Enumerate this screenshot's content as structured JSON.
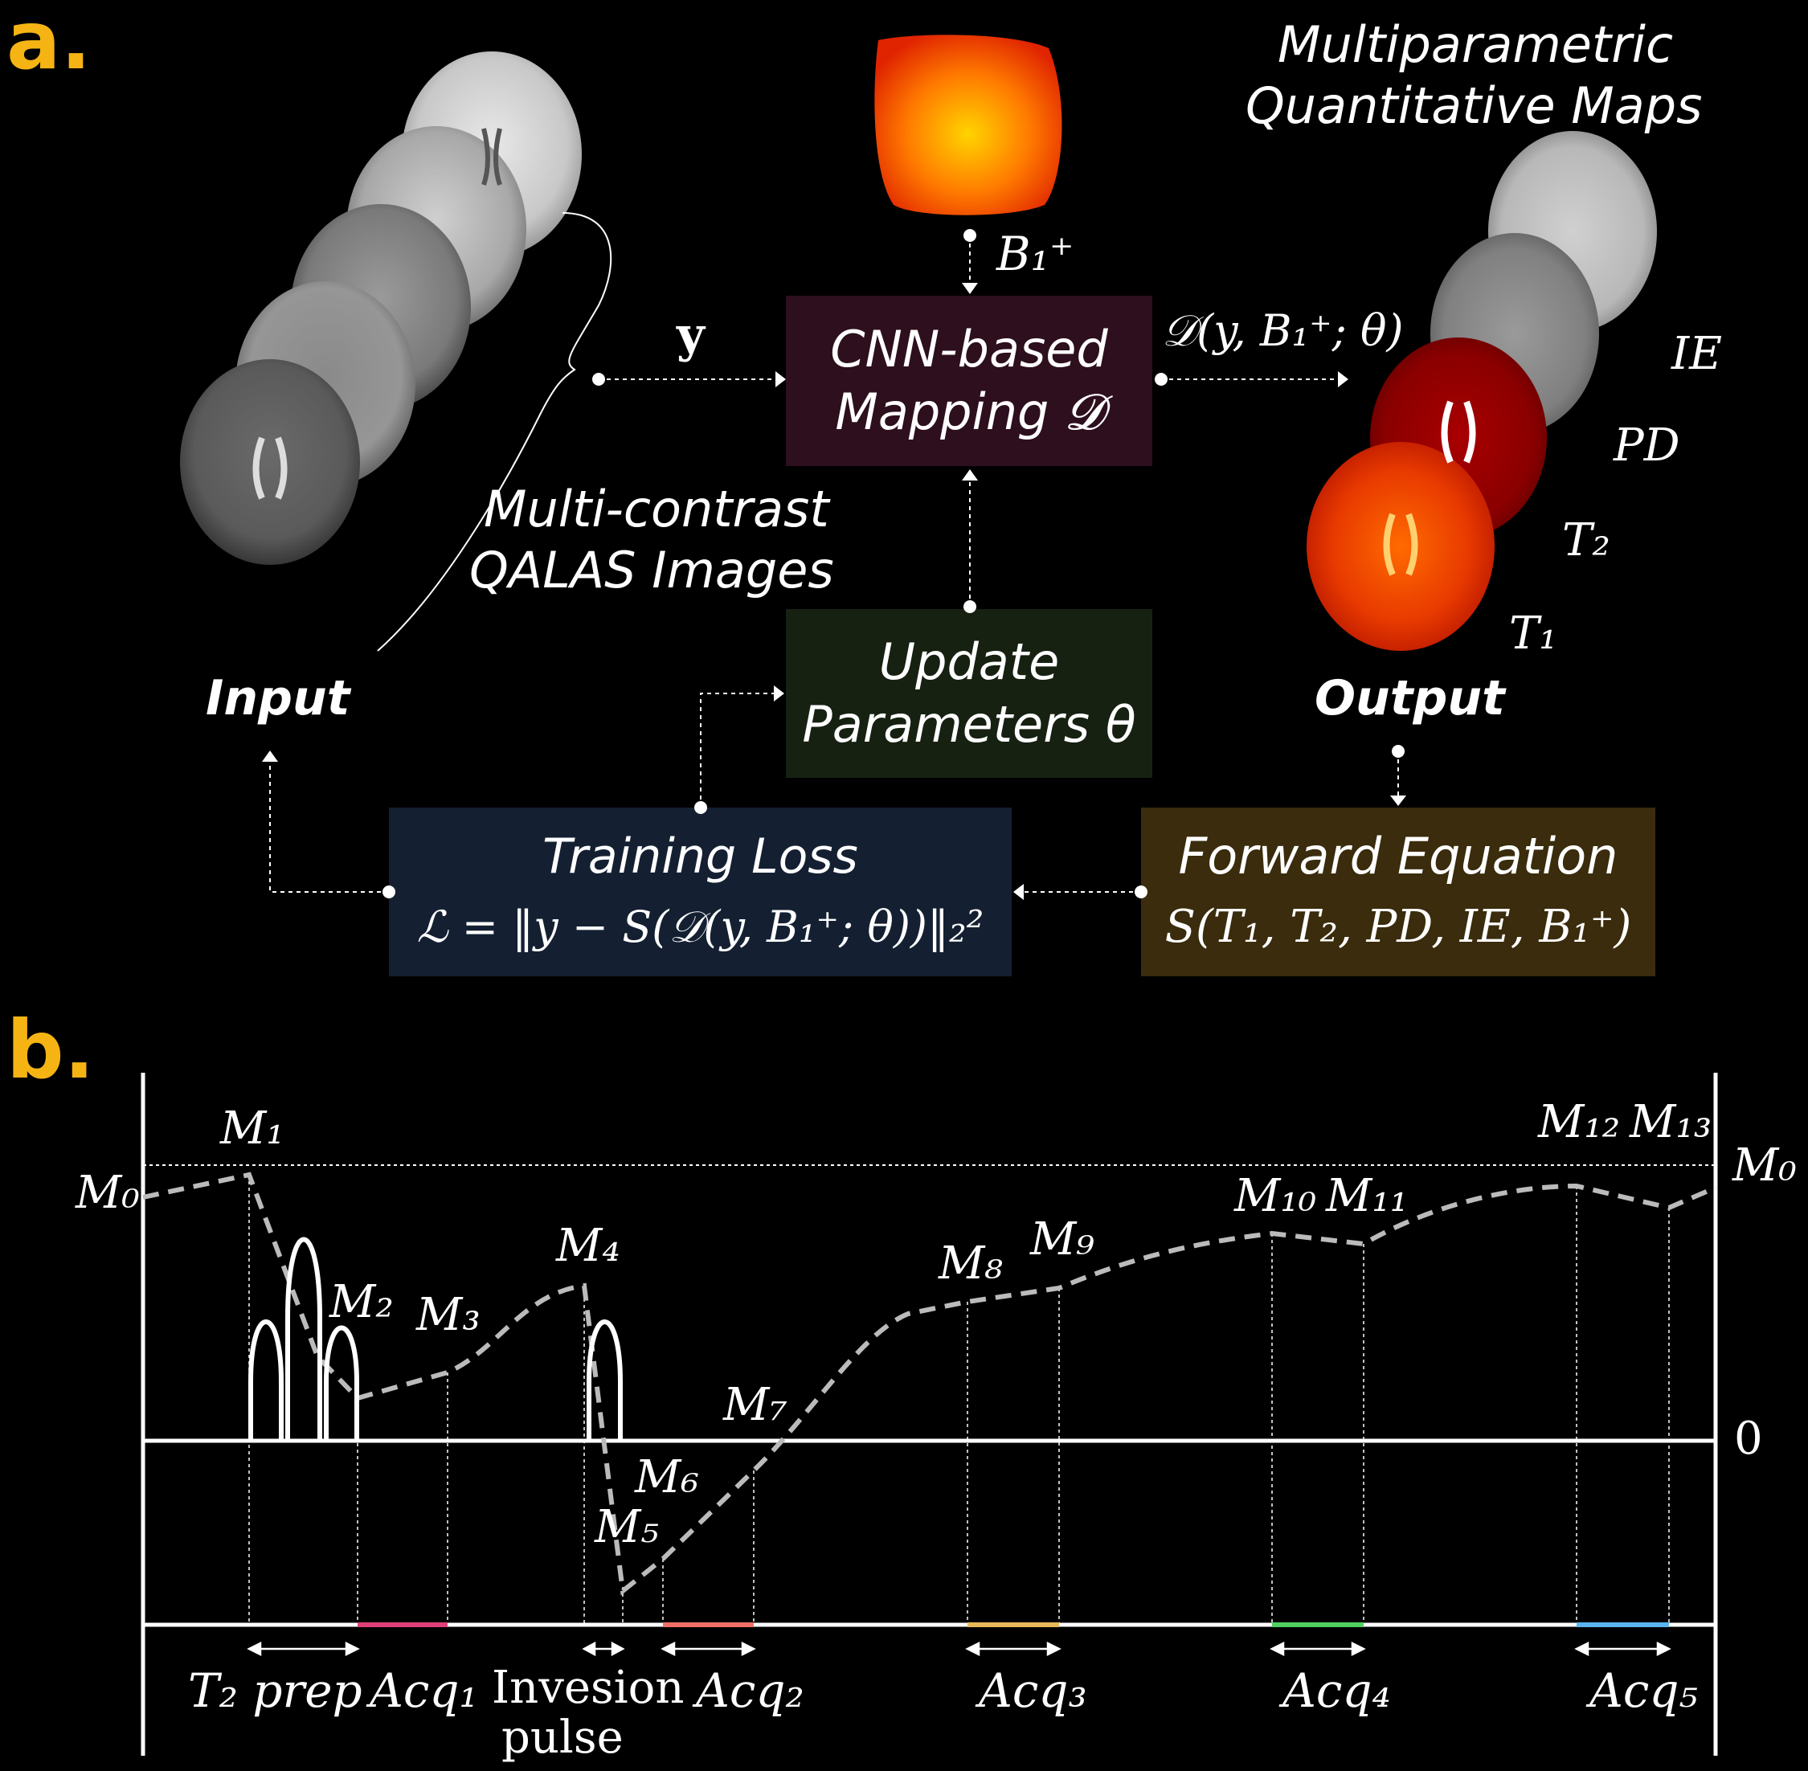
{
  "panel_a": {
    "label": "a.",
    "input_label": "Input",
    "output_label": "Output",
    "multicontrast": [
      "Multi-contrast",
      "QALAS Images"
    ],
    "maps_title": [
      "Multiparametric",
      "Quantitative Maps"
    ],
    "y_symbol": "y",
    "b1_symbol": "B₁⁺",
    "cnn_box": {
      "line1": "CNN-based",
      "line2": "Mapping 𝓓",
      "color": "#2e0f1e"
    },
    "update_box": {
      "line1": "Update",
      "line2": "Parameters θ",
      "color": "#162112"
    },
    "loss_box": {
      "line1": "Training Loss",
      "line2": "ℒ = ‖y − S(𝒟(y, B₁⁺; θ))‖₂²",
      "color": "#142032"
    },
    "forward_box": {
      "line1": "Forward Equation",
      "line2": "S(T₁, T₂, PD, IE, B₁⁺)",
      "color": "#3a2c0c"
    },
    "d_output": "𝒟(y, B₁⁺; θ)",
    "map_labels": [
      "IE",
      "PD",
      "T₂",
      "T₁"
    ]
  },
  "panel_b": {
    "label": "b.",
    "m_labels": [
      "M₀",
      "M₁",
      "M₂",
      "M₃",
      "M₄",
      "M₅",
      "M₆",
      "M₇",
      "M₈",
      "M₉",
      "M₁₀",
      "M₁₁",
      "M₁₂",
      "M₁₃",
      "M₀"
    ],
    "zero_label": "0",
    "bottom_labels": [
      "T₂ prep",
      "Acq₁",
      "Invesion",
      "pulse",
      "Acq₂",
      "Acq₃",
      "Acq₄",
      "Acq₅"
    ],
    "acq_colors": [
      "#e0407a",
      "#f07068",
      "#e8b85a",
      "#4fd060",
      "#5ab4f0"
    ]
  }
}
